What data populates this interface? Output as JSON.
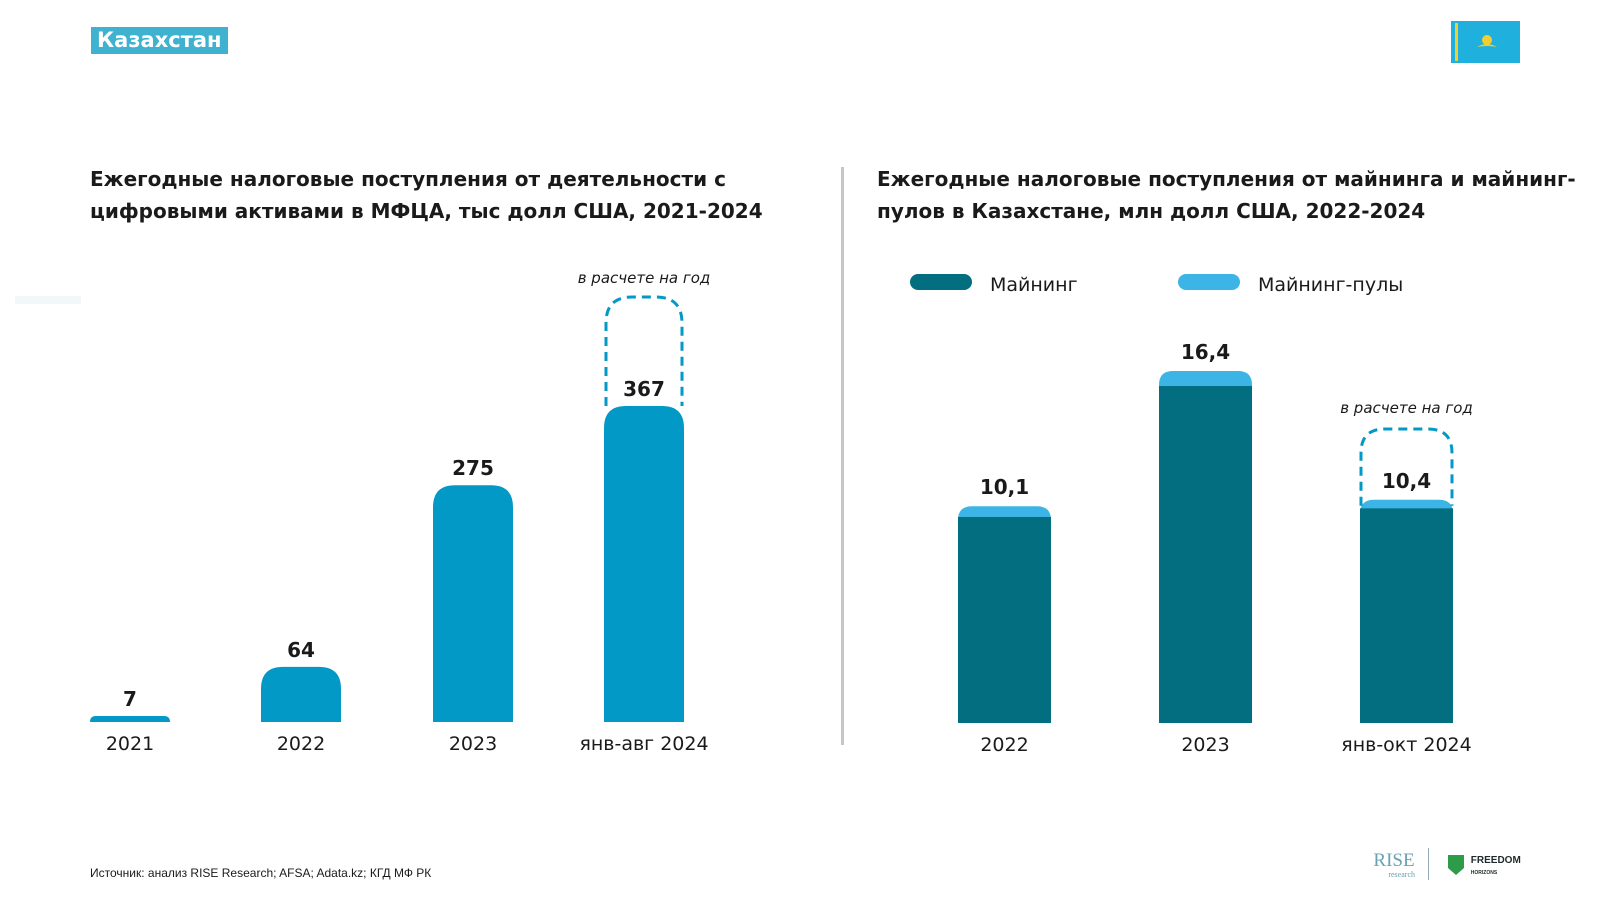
{
  "header": {
    "tag": "Казахстан",
    "flag_colors": {
      "field": "#1fb0dd",
      "emblem": "#f2cf2e"
    }
  },
  "footer": {
    "source": "Источник: анализ RISE Research; AFSA; Adata.kz; КГД МФ РК",
    "logo_rise": "RISE",
    "logo_rise_sub": "research",
    "logo_freedom": "FREEDOM",
    "logo_freedom_sub": "HORIZONS"
  },
  "chart_data": [
    {
      "type": "bar",
      "title": "Ежегодные налоговые поступления от деятельности с цифровыми активами в МФЦА, тыс долл США, 2021-2024",
      "categories": [
        "2021",
        "2022",
        "2023",
        "янв-авг 2024"
      ],
      "values": [
        7,
        64,
        275,
        367
      ],
      "value_labels": [
        "7",
        "64",
        "275",
        "367"
      ],
      "annotation": "в расчете на год",
      "annotation_category": "янв-авг 2024",
      "colors": {
        "bar": "#0399c6",
        "dash": "#0399c6"
      },
      "ymax": 367
    },
    {
      "type": "bar",
      "stacked": true,
      "title": "Ежегодные налоговые поступления от майнинга и майнинг-пулов в Казахстане, млн долл США, 2022-2024",
      "categories": [
        "2022",
        "2023",
        "янв-окт 2024"
      ],
      "series": [
        {
          "name": "Майнинг",
          "values": [
            9.6,
            15.7,
            10.0
          ],
          "color": "#026e80"
        },
        {
          "name": "Майнинг-пулы",
          "values": [
            0.5,
            0.7,
            0.4
          ],
          "color": "#3cb5e6"
        }
      ],
      "totals": [
        "10,1",
        "16,4",
        "10,4"
      ],
      "annotation": "в расчете на год",
      "annotation_category": "янв-окт 2024",
      "legend": "top-left",
      "ymax": 16.4
    }
  ]
}
